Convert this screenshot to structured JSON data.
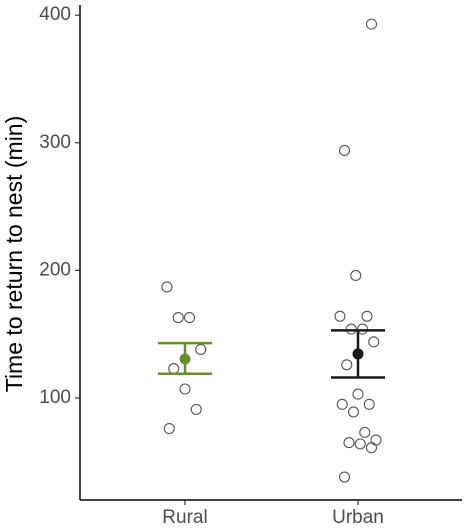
{
  "chart_data": {
    "type": "strip",
    "ylabel": "Time to return to nest (min)",
    "categories": [
      "Rural",
      "Urban"
    ],
    "colors": [
      "#6a8f2a",
      "#1a1a1a"
    ],
    "points": [
      [
        187,
        163,
        163,
        138,
        123,
        107,
        91,
        76
      ],
      [
        393,
        294,
        196,
        164,
        164,
        154,
        154,
        144,
        126,
        103,
        95,
        95,
        89,
        73,
        67,
        65,
        64,
        61,
        38
      ]
    ],
    "means": [
      130.5,
      134.5
    ],
    "lower": [
      119,
      116
    ],
    "upper": [
      143,
      153
    ],
    "ylim": [
      20,
      408
    ],
    "yticks": [
      100,
      200,
      300,
      400
    ]
  }
}
